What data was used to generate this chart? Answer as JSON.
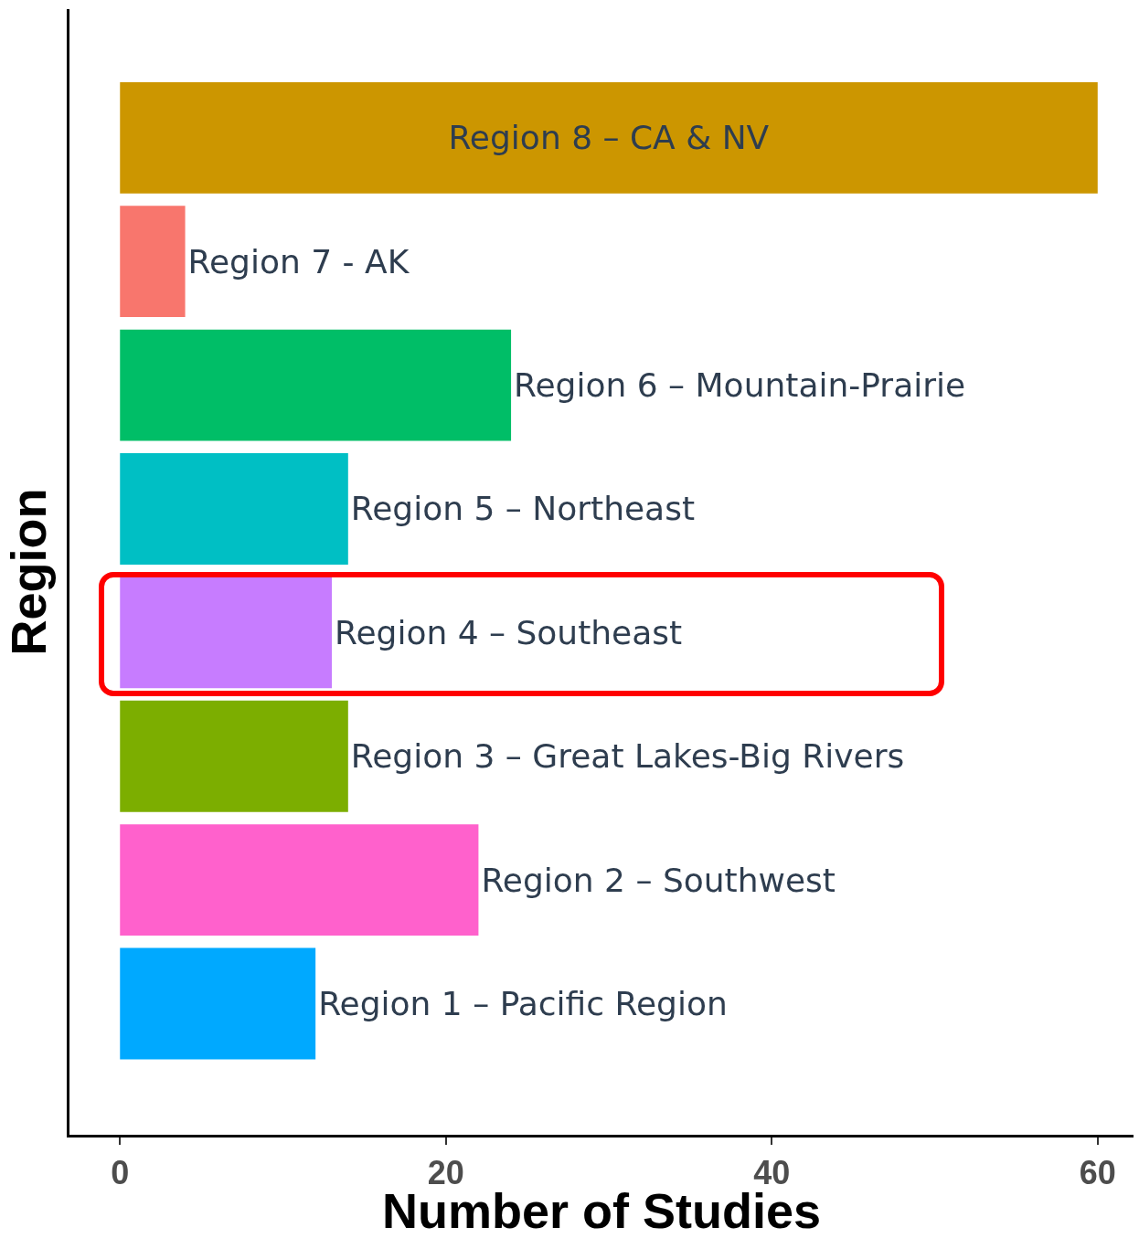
{
  "chart_data": {
    "type": "bar",
    "orientation": "horizontal",
    "categories": [
      "Region 8 – CA & NV",
      "Region 7 - AK",
      "Region 6 – Mountain-Prairie",
      "Region 5 – Northeast",
      "Region 4 – Southeast",
      "Region 3 – Great Lakes-Big Rivers",
      "Region 2 – Southwest",
      "Region 1 – Pacific Region"
    ],
    "values": [
      60,
      4,
      24,
      14,
      13,
      14,
      22,
      12
    ],
    "colors": [
      "#cc9600",
      "#f8766d",
      "#00be67",
      "#00bfc4",
      "#c77cff",
      "#7cae00",
      "#ff61cc",
      "#00a9ff"
    ],
    "xlabel": "Number of Studies",
    "ylabel": "Region",
    "xlim": [
      -3.1,
      62.2
    ],
    "xticks": [
      0,
      20,
      40,
      60
    ],
    "tick_labels": "x",
    "grid": false
  }
}
